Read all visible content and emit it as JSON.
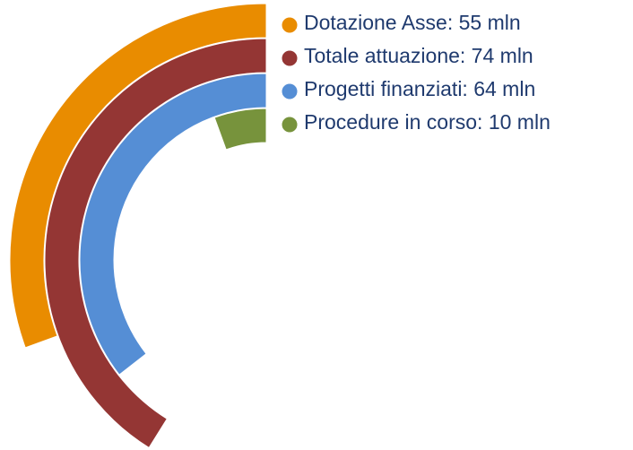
{
  "chart_data": {
    "type": "radial_bar",
    "series": [
      {
        "name": "Dotazione Asse: 55 mln",
        "color": "#e98c00",
        "values": [
          55
        ]
      },
      {
        "name": "Totale attuazione: 74 mln",
        "color": "#943634",
        "values": [
          74
        ]
      },
      {
        "name": "Progetti finanziati: 64 mln",
        "color": "#558ed5",
        "values": [
          64
        ]
      },
      {
        "name": "Procedure in corso: 10 mln",
        "color": "#77933c",
        "values": [
          10
        ]
      }
    ],
    "ylim": [
      0,
      180
    ],
    "legend": "top-right"
  }
}
